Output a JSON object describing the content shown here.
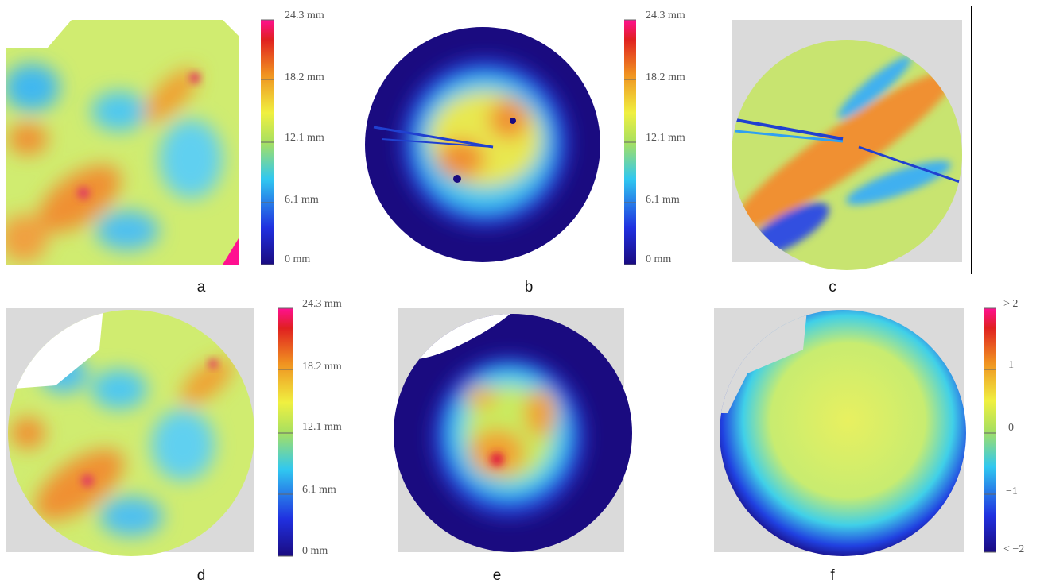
{
  "panels": [
    {
      "label": "a"
    },
    {
      "label": "b"
    },
    {
      "label": "c"
    },
    {
      "label": "d"
    },
    {
      "label": "e"
    },
    {
      "label": "f"
    }
  ],
  "colorbars": [
    {
      "ticks": [
        "24.3 mm",
        "18.2 mm",
        "12.1 mm",
        "6.1 mm",
        "0 mm"
      ]
    },
    {
      "ticks": [
        "24.3 mm",
        "18.2 mm",
        "12.1 mm",
        "6.1 mm",
        "0 mm"
      ]
    },
    {
      "ticks": [
        "24.3 mm",
        "18.2 mm",
        "12.1 mm",
        "6.1 mm",
        "0 mm"
      ]
    },
    {
      "ticks": [
        "> 2",
        "1",
        "0",
        "−1",
        "< −2"
      ]
    }
  ]
}
